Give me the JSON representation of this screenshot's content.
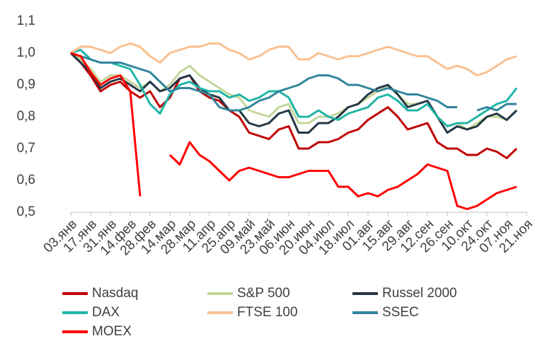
{
  "chart_data": {
    "type": "line",
    "categories": [
      "03.янв",
      null,
      "17.янв",
      null,
      "31.янв",
      null,
      "14.фев",
      null,
      "28.фев",
      null,
      "14.мар",
      null,
      "28.мар",
      null,
      "11.апр",
      null,
      "25.апр",
      null,
      "09.май",
      null,
      "23.май",
      null,
      "06.июн",
      null,
      "20.июн",
      null,
      "04.июл",
      null,
      "18.июл",
      null,
      "01.авг",
      null,
      "15.авг",
      null,
      "29.авг",
      null,
      "12.сен",
      null,
      "26.сен",
      null,
      "10.окт",
      null,
      "24.окт",
      null,
      "07.ноя",
      null,
      "21.ноя"
    ],
    "series": [
      {
        "name": "Nasdaq",
        "color": "#c00000",
        "values": [
          1.0,
          0.97,
          0.93,
          0.88,
          0.9,
          0.91,
          0.88,
          0.86,
          0.88,
          0.83,
          0.86,
          0.92,
          0.93,
          0.88,
          0.86,
          0.85,
          0.82,
          0.8,
          0.75,
          0.74,
          0.73,
          0.76,
          0.77,
          0.7,
          0.7,
          0.72,
          0.72,
          0.73,
          0.75,
          0.76,
          0.79,
          0.81,
          0.83,
          0.8,
          0.76,
          0.77,
          0.78,
          0.72,
          0.7,
          0.7,
          0.68,
          0.68,
          0.7,
          0.69,
          0.67,
          0.7,
          null
        ]
      },
      {
        "name": "S&P 500",
        "color": "#c4d79b",
        "values": [
          1.0,
          0.98,
          0.95,
          0.91,
          0.93,
          0.93,
          0.91,
          0.89,
          0.91,
          0.88,
          0.9,
          0.94,
          0.96,
          0.93,
          0.91,
          0.89,
          0.87,
          0.86,
          0.82,
          0.81,
          0.8,
          0.83,
          0.84,
          0.78,
          0.78,
          0.8,
          0.8,
          0.81,
          0.83,
          0.84,
          0.86,
          0.88,
          0.9,
          0.87,
          0.84,
          0.84,
          0.85,
          0.8,
          0.77,
          0.78,
          0.76,
          0.78,
          0.8,
          0.8,
          0.79,
          0.82,
          null
        ]
      },
      {
        "name": "Russel 2000",
        "color": "#243746",
        "values": [
          1.0,
          0.97,
          0.94,
          0.89,
          0.91,
          0.92,
          0.9,
          0.88,
          0.91,
          0.88,
          0.89,
          0.92,
          0.93,
          0.89,
          0.87,
          0.86,
          0.82,
          0.82,
          0.78,
          0.77,
          0.78,
          0.81,
          0.82,
          0.75,
          0.75,
          0.78,
          0.78,
          0.8,
          0.83,
          0.84,
          0.87,
          0.89,
          0.9,
          0.87,
          0.83,
          0.84,
          0.85,
          0.8,
          0.75,
          0.77,
          0.76,
          0.77,
          0.8,
          0.81,
          0.79,
          0.82,
          null
        ]
      },
      {
        "name": "DAX",
        "color": "#1fb5a6",
        "values": [
          1.0,
          1.01,
          0.98,
          0.97,
          0.97,
          0.96,
          0.95,
          0.9,
          0.84,
          0.81,
          0.87,
          0.9,
          0.91,
          0.89,
          0.88,
          0.88,
          0.86,
          0.87,
          0.85,
          0.86,
          0.88,
          0.88,
          0.86,
          0.8,
          0.8,
          0.82,
          0.8,
          0.79,
          0.81,
          0.82,
          0.83,
          0.86,
          0.87,
          0.85,
          0.82,
          0.82,
          0.84,
          0.8,
          0.77,
          0.78,
          0.78,
          0.8,
          0.82,
          0.84,
          0.85,
          0.89,
          null
        ]
      },
      {
        "name": "FTSE 100",
        "color": "#fac090",
        "values": [
          1.0,
          1.02,
          1.02,
          1.01,
          1.0,
          1.02,
          1.03,
          1.02,
          0.99,
          0.97,
          1.0,
          1.01,
          1.02,
          1.02,
          1.03,
          1.03,
          1.01,
          1.0,
          0.98,
          0.99,
          1.01,
          1.02,
          1.02,
          0.98,
          0.98,
          1.0,
          0.99,
          0.98,
          0.99,
          0.99,
          1.0,
          1.01,
          1.02,
          1.01,
          1.0,
          0.99,
          0.99,
          0.97,
          0.95,
          0.96,
          0.95,
          0.93,
          0.94,
          0.96,
          0.98,
          0.99,
          null
        ]
      },
      {
        "name": "SSEC",
        "color": "#31849b",
        "values": [
          1.0,
          0.99,
          0.98,
          0.97,
          0.97,
          0.97,
          0.96,
          0.95,
          0.94,
          0.91,
          0.88,
          0.89,
          0.89,
          0.88,
          0.87,
          0.83,
          0.82,
          0.82,
          0.83,
          0.85,
          0.86,
          0.88,
          0.89,
          0.9,
          0.92,
          0.93,
          0.93,
          0.92,
          0.9,
          0.9,
          0.89,
          0.88,
          0.89,
          0.88,
          0.87,
          0.87,
          0.86,
          0.85,
          0.83,
          0.83,
          null,
          0.82,
          0.83,
          0.82,
          0.84,
          0.84,
          null
        ]
      },
      {
        "name": "MOEX",
        "color": "#ff0000",
        "values": [
          1.0,
          0.99,
          0.94,
          0.9,
          0.92,
          0.93,
          0.88,
          0.55,
          null,
          null,
          0.68,
          0.65,
          0.72,
          0.68,
          0.66,
          0.63,
          0.6,
          0.63,
          0.64,
          0.63,
          0.62,
          0.61,
          0.61,
          0.62,
          0.63,
          0.63,
          0.63,
          0.58,
          0.58,
          0.55,
          0.56,
          0.55,
          0.57,
          0.58,
          0.6,
          0.62,
          0.65,
          0.64,
          0.63,
          0.52,
          0.51,
          0.52,
          0.54,
          0.56,
          0.57,
          0.58,
          null
        ]
      }
    ],
    "ylim": [
      0.5,
      1.1
    ],
    "yticks": [
      {
        "value": 0.5,
        "label": "0,5"
      },
      {
        "value": 0.6,
        "label": "0,6"
      },
      {
        "value": 0.7,
        "label": "0,7"
      },
      {
        "value": 0.8,
        "label": "0,8"
      },
      {
        "value": 0.9,
        "label": "0,9"
      },
      {
        "value": 1.0,
        "label": "1,0"
      },
      {
        "value": 1.1,
        "label": "1,1"
      }
    ]
  }
}
